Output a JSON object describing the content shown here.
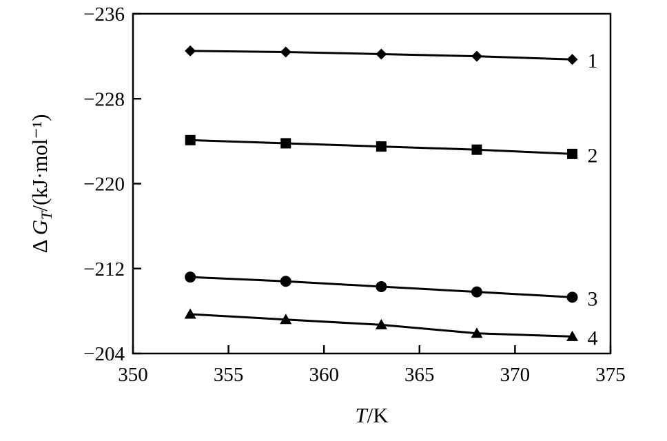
{
  "chart_data": {
    "type": "line",
    "xlabel": "T/K",
    "ylabel": "ΔG_T/(kJ·mol⁻¹)",
    "xlim": [
      350,
      375
    ],
    "ylim": [
      -236,
      -204
    ],
    "y_reversed": true,
    "xticks": [
      350,
      355,
      360,
      365,
      370,
      375
    ],
    "yticks": [
      -236,
      -228,
      -220,
      -212,
      -204
    ],
    "x": [
      353,
      358,
      363,
      368,
      373
    ],
    "grid": false,
    "series": [
      {
        "name": "1",
        "marker": "diamond",
        "values": [
          -232.5,
          -232.4,
          -232.2,
          -232.0,
          -231.7
        ]
      },
      {
        "name": "2",
        "marker": "square",
        "values": [
          -224.1,
          -223.8,
          -223.5,
          -223.2,
          -222.8
        ]
      },
      {
        "name": "3",
        "marker": "circle",
        "values": [
          -211.2,
          -210.8,
          -210.3,
          -209.8,
          -209.3
        ]
      },
      {
        "name": "4",
        "marker": "triangle",
        "values": [
          -207.7,
          -207.2,
          -206.7,
          -205.9,
          -205.6
        ]
      }
    ],
    "colors": {
      "ink": "#000000",
      "background": "#ffffff"
    }
  }
}
